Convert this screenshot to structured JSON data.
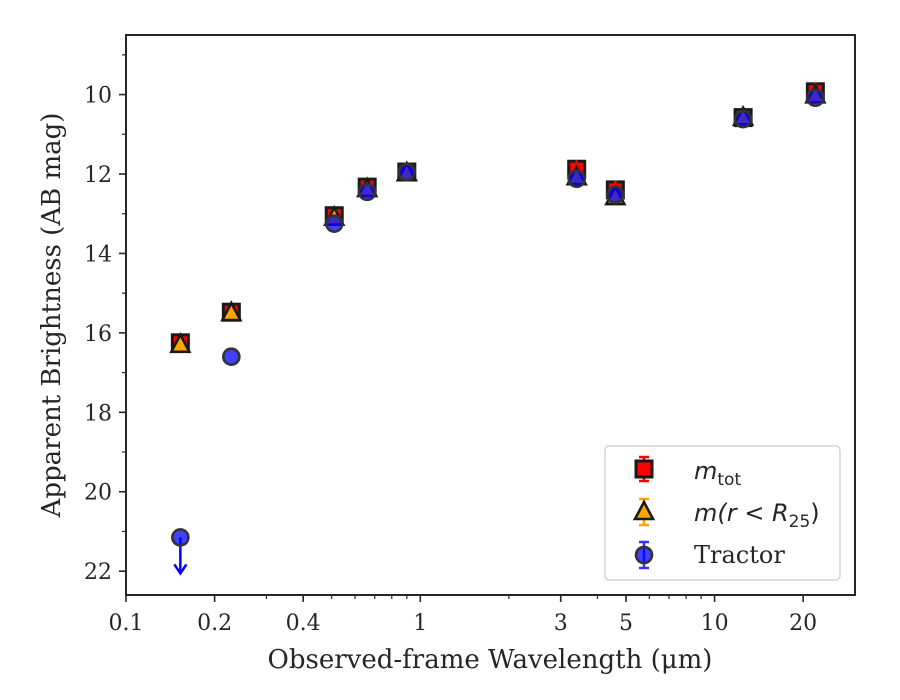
{
  "chart_data": {
    "type": "scatter",
    "xlabel": "Observed-frame Wavelength (μm)",
    "ylabel": "Apparent Brightness (AB mag)",
    "xscale": "log",
    "xlim": [
      0.1,
      30
    ],
    "ylim": [
      22.6,
      8.5
    ],
    "y_inverted": true,
    "xticks": [
      0.1,
      0.2,
      0.4,
      1,
      3,
      5,
      10,
      20
    ],
    "xtick_labels": [
      "0.1",
      "0.2",
      "0.4",
      "1",
      "3",
      "5",
      "10",
      "20"
    ],
    "yticks": [
      10,
      12,
      14,
      16,
      18,
      20,
      22
    ],
    "ytick_labels": [
      "10",
      "12",
      "14",
      "16",
      "18",
      "20",
      "22"
    ],
    "grid": false,
    "legend_position": "lower-right",
    "series": [
      {
        "name": "m_tot",
        "legend_main": "m",
        "legend_sub": "tot",
        "marker": "square",
        "color": "#ff0000",
        "points": [
          {
            "x": 0.153,
            "y": 16.25
          },
          {
            "x": 0.228,
            "y": 15.48
          },
          {
            "x": 0.51,
            "y": 13.05
          },
          {
            "x": 0.66,
            "y": 12.33
          },
          {
            "x": 0.9,
            "y": 11.95
          },
          {
            "x": 3.4,
            "y": 11.88
          },
          {
            "x": 4.6,
            "y": 12.4
          },
          {
            "x": 12.5,
            "y": 10.58
          },
          {
            "x": 22.0,
            "y": 9.93
          }
        ]
      },
      {
        "name": "m(r < R25)",
        "legend_main": "m(r < R",
        "legend_sub": "25",
        "legend_close": ")",
        "marker": "triangle",
        "color": "#ffa500",
        "points": [
          {
            "x": 0.153,
            "y": 16.3
          },
          {
            "x": 0.228,
            "y": 15.5
          },
          {
            "x": 0.51,
            "y": 13.1
          },
          {
            "x": 0.66,
            "y": 12.38
          },
          {
            "x": 0.9,
            "y": 11.98
          },
          {
            "x": 3.4,
            "y": 12.08
          },
          {
            "x": 4.6,
            "y": 12.58
          },
          {
            "x": 12.5,
            "y": 10.58
          },
          {
            "x": 22.0,
            "y": 10.02
          }
        ]
      },
      {
        "name": "Tractor",
        "marker": "circle",
        "color": "#0000ff",
        "points": [
          {
            "x": 0.153,
            "y": 21.15,
            "upper_limit": true
          },
          {
            "x": 0.228,
            "y": 16.6
          },
          {
            "x": 0.51,
            "y": 13.25
          },
          {
            "x": 0.66,
            "y": 12.45
          },
          {
            "x": 0.9,
            "y": 11.95
          },
          {
            "x": 3.4,
            "y": 12.12
          },
          {
            "x": 4.6,
            "y": 12.52
          },
          {
            "x": 12.5,
            "y": 10.62
          },
          {
            "x": 22.0,
            "y": 10.08
          }
        ]
      }
    ]
  }
}
